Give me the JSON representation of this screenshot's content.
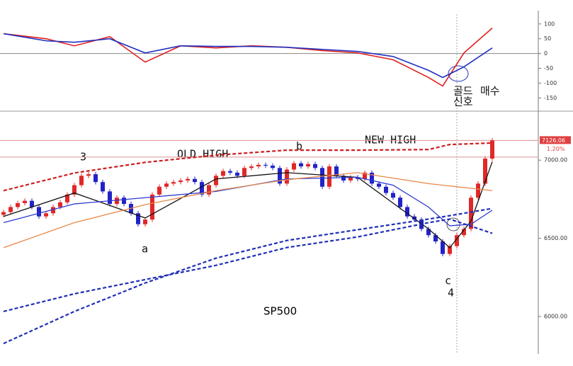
{
  "chart_data": [
    {
      "type": "line",
      "ylim": [
        -190,
        145
      ],
      "yticks": [
        100,
        50,
        0,
        -50,
        -100,
        -150
      ],
      "xlim": [
        0,
        75
      ],
      "zero_line": 0,
      "series": [
        {
          "color": "#e02020",
          "x": [
            0,
            6,
            10,
            15,
            20,
            25,
            30,
            35,
            40,
            45,
            50,
            55,
            60,
            62,
            65,
            69
          ],
          "values": [
            67,
            50,
            26,
            57,
            -29,
            26,
            19,
            26,
            21,
            10,
            2,
            -21,
            -81,
            -110,
            2,
            86
          ]
        },
        {
          "color": "#2030c0",
          "x": [
            0,
            6,
            10,
            15,
            20,
            25,
            30,
            35,
            40,
            45,
            50,
            55,
            60,
            62,
            65,
            69
          ],
          "values": [
            67,
            43,
            38,
            50,
            2,
            26,
            24,
            24,
            21,
            14,
            7,
            -10,
            -57,
            -81,
            -45,
            19
          ]
        }
      ],
      "annotations": [
        "골드",
        "신호",
        "매수"
      ]
    },
    {
      "type": "candlestick",
      "title": "SP500",
      "ylim": [
        5760,
        7300
      ],
      "xlim": [
        0,
        75
      ],
      "yticks": [
        {
          "value": 7000,
          "label": "7000.00"
        },
        {
          "value": 6500,
          "label": "6500.00"
        },
        {
          "value": 6000,
          "label": "6000.00"
        }
      ],
      "up_color": "#e02828",
      "down_color": "#2222c8",
      "candles": [
        [
          6650,
          6683,
          6635,
          6668
        ],
        [
          6668,
          6715,
          6653,
          6700
        ],
        [
          6700,
          6740,
          6685,
          6725
        ],
        [
          6725,
          6755,
          6710,
          6740
        ],
        [
          6740,
          6755,
          6685,
          6700
        ],
        [
          6700,
          6715,
          6625,
          6640
        ],
        [
          6640,
          6675,
          6625,
          6660
        ],
        [
          6660,
          6715,
          6645,
          6700
        ],
        [
          6700,
          6745,
          6685,
          6730
        ],
        [
          6730,
          6795,
          6715,
          6780
        ],
        [
          6780,
          6855,
          6765,
          6840
        ],
        [
          6840,
          6915,
          6825,
          6900
        ],
        [
          6900,
          6925,
          6885,
          6910
        ],
        [
          6910,
          6925,
          6845,
          6860
        ],
        [
          6860,
          6875,
          6785,
          6800
        ],
        [
          6800,
          6815,
          6705,
          6720
        ],
        [
          6720,
          6775,
          6705,
          6760
        ],
        [
          6760,
          6775,
          6705,
          6720
        ],
        [
          6720,
          6735,
          6645,
          6660
        ],
        [
          6660,
          6675,
          6575,
          6590
        ],
        [
          6590,
          6635,
          6575,
          6620
        ],
        [
          6620,
          6795,
          6605,
          6780
        ],
        [
          6780,
          6845,
          6765,
          6830
        ],
        [
          6830,
          6865,
          6815,
          6850
        ],
        [
          6850,
          6875,
          6835,
          6860
        ],
        [
          6860,
          6885,
          6845,
          6870
        ],
        [
          6870,
          6895,
          6855,
          6880
        ],
        [
          6880,
          6895,
          6845,
          6860
        ],
        [
          6860,
          6875,
          6765,
          6780
        ],
        [
          6780,
          6855,
          6765,
          6840
        ],
        [
          6840,
          6915,
          6825,
          6900
        ],
        [
          6900,
          6945,
          6885,
          6930
        ],
        [
          6930,
          6945,
          6905,
          6920
        ],
        [
          6920,
          6935,
          6885,
          6900
        ],
        [
          6900,
          6965,
          6885,
          6950
        ],
        [
          6950,
          6975,
          6935,
          6960
        ],
        [
          6960,
          6985,
          6945,
          6970
        ],
        [
          6970,
          6985,
          6950,
          6965
        ],
        [
          6965,
          6980,
          6935,
          6950
        ],
        [
          6950,
          6965,
          6835,
          6850
        ],
        [
          6850,
          6955,
          6835,
          6940
        ],
        [
          6940,
          6995,
          6925,
          6980
        ],
        [
          6980,
          6995,
          6945,
          6960
        ],
        [
          6960,
          6990,
          6945,
          6975
        ],
        [
          6975,
          6990,
          6935,
          6950
        ],
        [
          6950,
          6965,
          6815,
          6830
        ],
        [
          6830,
          6975,
          6815,
          6960
        ],
        [
          6960,
          6975,
          6885,
          6900
        ],
        [
          6900,
          6915,
          6855,
          6870
        ],
        [
          6870,
          6905,
          6855,
          6890
        ],
        [
          6890,
          6905,
          6865,
          6880
        ],
        [
          6880,
          6935,
          6865,
          6920
        ],
        [
          6920,
          6935,
          6835,
          6850
        ],
        [
          6850,
          6865,
          6815,
          6830
        ],
        [
          6830,
          6845,
          6775,
          6790
        ],
        [
          6790,
          6805,
          6745,
          6760
        ],
        [
          6760,
          6775,
          6685,
          6700
        ],
        [
          6700,
          6715,
          6625,
          6640
        ],
        [
          6640,
          6655,
          6605,
          6620
        ],
        [
          6620,
          6635,
          6545,
          6560
        ],
        [
          6560,
          6575,
          6505,
          6520
        ],
        [
          6520,
          6535,
          6465,
          6480
        ],
        [
          6480,
          6495,
          6385,
          6400
        ],
        [
          6400,
          6465,
          6385,
          6450
        ],
        [
          6450,
          6535,
          6435,
          6520
        ],
        [
          6520,
          6575,
          6505,
          6560
        ],
        [
          6560,
          6775,
          6545,
          6760
        ],
        [
          6760,
          6865,
          6745,
          6850
        ],
        [
          6850,
          7025,
          6835,
          7010
        ],
        [
          7010,
          7141,
          6995,
          7126
        ]
      ],
      "overlays": [
        {
          "color": "#111111",
          "dash": false,
          "x": [
            0,
            10,
            20,
            30,
            40,
            50,
            60,
            63,
            66,
            69
          ],
          "values": [
            6640,
            6790,
            6630,
            6880,
            6920,
            6890,
            6560,
            6440,
            6610,
            6990
          ]
        },
        {
          "color": "#2a3ad0",
          "dash": false,
          "x": [
            0,
            10,
            20,
            30,
            40,
            50,
            55,
            60,
            63,
            66,
            69
          ],
          "values": [
            6600,
            6720,
            6760,
            6800,
            6880,
            6890,
            6840,
            6700,
            6580,
            6590,
            6680
          ]
        },
        {
          "color": "#e8894a",
          "dash": false,
          "x": [
            0,
            10,
            20,
            30,
            40,
            50,
            60,
            69
          ],
          "values": [
            6440,
            6600,
            6715,
            6805,
            6875,
            6920,
            6850,
            6805
          ]
        },
        {
          "color": "#cc1f1f",
          "dash": true,
          "x": [
            0,
            10,
            20,
            30,
            40,
            50,
            60,
            63,
            69
          ],
          "values": [
            6805,
            6918,
            6986,
            7032,
            7064,
            7064,
            7068,
            7100,
            7110
          ]
        },
        {
          "color": "#1f2fb8",
          "dash": true,
          "x": [
            0,
            10,
            20,
            30,
            40,
            50,
            60,
            63,
            69
          ],
          "values": [
            6032,
            6145,
            6236,
            6327,
            6441,
            6509,
            6600,
            6623,
            6532
          ]
        },
        {
          "color": "#1f2fb8",
          "dash": true,
          "x": [
            0,
            10,
            20,
            30,
            40,
            50,
            60,
            63,
            69
          ],
          "values": [
            5827,
            6032,
            6214,
            6373,
            6486,
            6555,
            6623,
            6645,
            6691
          ]
        }
      ],
      "levels": [
        7126,
        7020
      ],
      "last_price": {
        "value": 7126.06,
        "label": "7126.06"
      },
      "change_label": "1.20%",
      "annotations": [
        "3",
        "OLD HIGH",
        "b",
        "NEW HIGH",
        "a",
        "c",
        "4"
      ]
    }
  ]
}
